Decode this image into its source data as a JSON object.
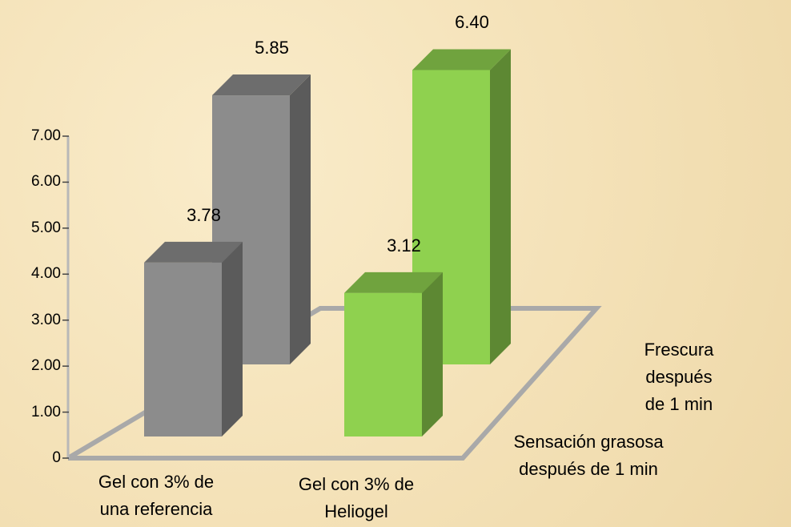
{
  "chart_data": {
    "type": "bar3d",
    "categories": [
      "Gel con 3% de\nuna referencia",
      "Gel con 3% de\nHeliogel"
    ],
    "colors": [
      "#8c8c8c",
      "#8fd14f"
    ],
    "series": [
      {
        "name": "Sensación grasosa\ndespués de 1 min",
        "values": [
          3.78,
          3.12
        ],
        "value_labels": [
          "3.78",
          "3.12"
        ]
      },
      {
        "name": "Frescura después\nde 1 min",
        "values": [
          5.85,
          6.4
        ],
        "value_labels": [
          "5.85",
          "6.40"
        ]
      }
    ],
    "ylim": [
      0,
      7
    ],
    "yticks": [
      0,
      {
        "value": 1,
        "label": "1.00"
      },
      {
        "value": 2,
        "label": "2.00"
      },
      {
        "value": 3,
        "label": "3.00"
      },
      {
        "value": 4,
        "label": "4.00"
      },
      {
        "value": 5,
        "label": "5.00"
      },
      {
        "value": 6,
        "label": "6.00"
      },
      {
        "value": 7,
        "label": "7.00"
      }
    ]
  }
}
